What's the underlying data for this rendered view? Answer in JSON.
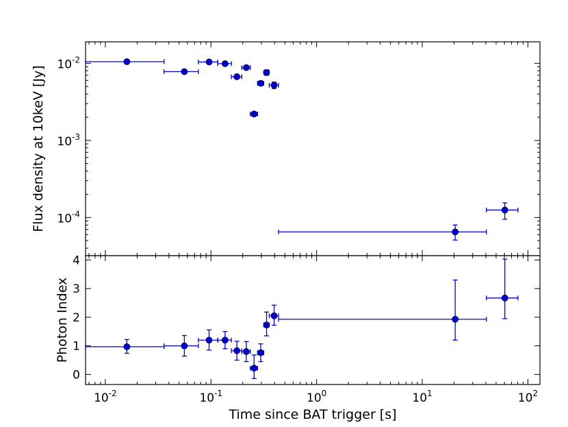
{
  "chart_data": [
    {
      "type": "scatter",
      "panel": "top",
      "xlabel": "",
      "ylabel": "Flux density at 10keV [Jy]",
      "xscale": "log",
      "yscale": "log",
      "xlim": [
        0.0065,
        130
      ],
      "ylim": [
        3.2e-05,
        0.019
      ],
      "yticks": [
        {
          "value": 0.01,
          "base": "10",
          "exp": "-2"
        },
        {
          "value": 0.001,
          "base": "10",
          "exp": "-3"
        },
        {
          "value": 0.0001,
          "base": "10",
          "exp": "-4"
        }
      ],
      "color": "#0000cc",
      "series": [
        {
          "name": "Flux density",
          "points": [
            {
              "x": 0.016,
              "xlo": 0.0065,
              "xhi": 0.036,
              "y": 0.0105,
              "ylo": 0.0101,
              "yhi": 0.0109
            },
            {
              "x": 0.056,
              "xlo": 0.036,
              "xhi": 0.076,
              "y": 0.0078,
              "ylo": 0.0075,
              "yhi": 0.0081
            },
            {
              "x": 0.096,
              "xlo": 0.076,
              "xhi": 0.116,
              "y": 0.0104,
              "ylo": 0.01,
              "yhi": 0.0108
            },
            {
              "x": 0.136,
              "xlo": 0.116,
              "xhi": 0.156,
              "y": 0.0099,
              "ylo": 0.0095,
              "yhi": 0.0103
            },
            {
              "x": 0.176,
              "xlo": 0.156,
              "xhi": 0.196,
              "y": 0.0067,
              "ylo": 0.0063,
              "yhi": 0.0071
            },
            {
              "x": 0.216,
              "xlo": 0.196,
              "xhi": 0.236,
              "y": 0.0088,
              "ylo": 0.0084,
              "yhi": 0.0092
            },
            {
              "x": 0.256,
              "xlo": 0.236,
              "xhi": 0.276,
              "y": 0.0022,
              "ylo": 0.0021,
              "yhi": 0.0023
            },
            {
              "x": 0.296,
              "xlo": 0.276,
              "xhi": 0.316,
              "y": 0.0055,
              "ylo": 0.0052,
              "yhi": 0.0058
            },
            {
              "x": 0.336,
              "xlo": 0.316,
              "xhi": 0.356,
              "y": 0.0076,
              "ylo": 0.007,
              "yhi": 0.0082
            },
            {
              "x": 0.396,
              "xlo": 0.356,
              "xhi": 0.436,
              "y": 0.0052,
              "ylo": 0.0047,
              "yhi": 0.0057
            },
            {
              "x": 20.5,
              "xlo": 0.436,
              "xhi": 40.5,
              "y": 6.5e-05,
              "ylo": 5.1e-05,
              "yhi": 8e-05
            },
            {
              "x": 60.5,
              "xlo": 40.5,
              "xhi": 80.5,
              "y": 0.000125,
              "ylo": 9.5e-05,
              "yhi": 0.000155
            }
          ]
        }
      ]
    },
    {
      "type": "scatter",
      "panel": "bottom",
      "xlabel": "Time since BAT trigger [s]",
      "ylabel": "Photon Index",
      "xscale": "log",
      "yscale": "linear",
      "xlim": [
        0.0065,
        130
      ],
      "ylim": [
        -0.35,
        4.15
      ],
      "yticks": [
        {
          "value": 0,
          "label": "0"
        },
        {
          "value": 1,
          "label": "1"
        },
        {
          "value": 2,
          "label": "2"
        },
        {
          "value": 3,
          "label": "3"
        },
        {
          "value": 4,
          "label": "4"
        }
      ],
      "xticks": [
        {
          "value": 0.01,
          "base": "10",
          "exp": "-2"
        },
        {
          "value": 0.1,
          "base": "10",
          "exp": "-1"
        },
        {
          "value": 1,
          "base": "10",
          "exp": "0"
        },
        {
          "value": 10,
          "base": "10",
          "exp": "1"
        },
        {
          "value": 100,
          "base": "10",
          "exp": "2"
        }
      ],
      "color": "#0000cc",
      "series": [
        {
          "name": "Photon Index",
          "points": [
            {
              "x": 0.016,
              "xlo": 0.0065,
              "xhi": 0.036,
              "y": 0.97,
              "ylo": 0.74,
              "yhi": 1.22
            },
            {
              "x": 0.056,
              "xlo": 0.036,
              "xhi": 0.076,
              "y": 1.0,
              "ylo": 0.64,
              "yhi": 1.36
            },
            {
              "x": 0.096,
              "xlo": 0.076,
              "xhi": 0.116,
              "y": 1.2,
              "ylo": 0.85,
              "yhi": 1.56
            },
            {
              "x": 0.136,
              "xlo": 0.116,
              "xhi": 0.156,
              "y": 1.2,
              "ylo": 0.9,
              "yhi": 1.5
            },
            {
              "x": 0.176,
              "xlo": 0.156,
              "xhi": 0.196,
              "y": 0.83,
              "ylo": 0.5,
              "yhi": 1.16
            },
            {
              "x": 0.216,
              "xlo": 0.196,
              "xhi": 0.236,
              "y": 0.8,
              "ylo": 0.45,
              "yhi": 1.15
            },
            {
              "x": 0.256,
              "xlo": 0.236,
              "xhi": 0.276,
              "y": 0.22,
              "ylo": -0.14,
              "yhi": 0.68
            },
            {
              "x": 0.296,
              "xlo": 0.276,
              "xhi": 0.316,
              "y": 0.76,
              "ylo": 0.45,
              "yhi": 1.07
            },
            {
              "x": 0.336,
              "xlo": 0.316,
              "xhi": 0.356,
              "y": 1.73,
              "ylo": 1.35,
              "yhi": 2.18
            },
            {
              "x": 0.396,
              "xlo": 0.356,
              "xhi": 0.436,
              "y": 2.05,
              "ylo": 1.72,
              "yhi": 2.42
            },
            {
              "x": 20.5,
              "xlo": 0.436,
              "xhi": 40.5,
              "y": 1.93,
              "ylo": 1.2,
              "yhi": 3.3
            },
            {
              "x": 60.5,
              "xlo": 40.5,
              "xhi": 80.5,
              "y": 2.67,
              "ylo": 1.95,
              "yhi": 4.03
            }
          ]
        }
      ]
    }
  ]
}
